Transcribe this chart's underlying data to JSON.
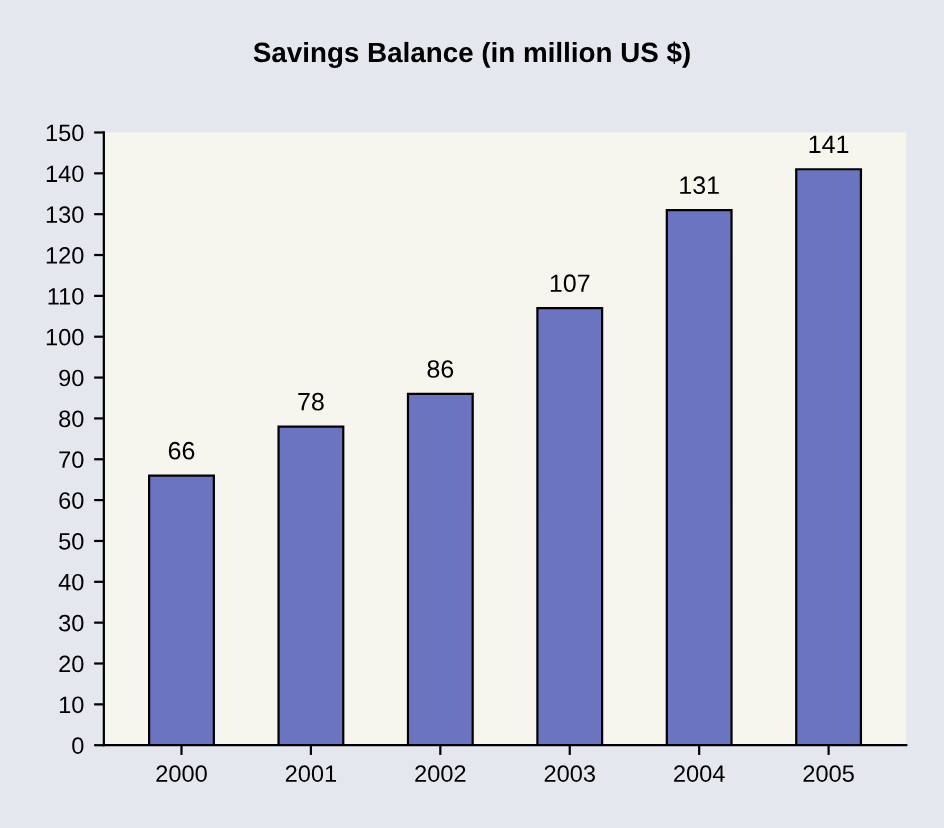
{
  "chart_data": {
    "type": "bar",
    "title": "Savings Balance (in million US $)",
    "categories": [
      "2000",
      "2001",
      "2002",
      "2003",
      "2004",
      "2005"
    ],
    "values": [
      66,
      78,
      86,
      107,
      131,
      141
    ],
    "color": "#6b74c0",
    "ylim": [
      0,
      150
    ],
    "yticks": [
      0,
      10,
      20,
      30,
      40,
      50,
      60,
      70,
      80,
      90,
      100,
      110,
      120,
      130,
      140,
      150
    ],
    "data_labels": true
  }
}
